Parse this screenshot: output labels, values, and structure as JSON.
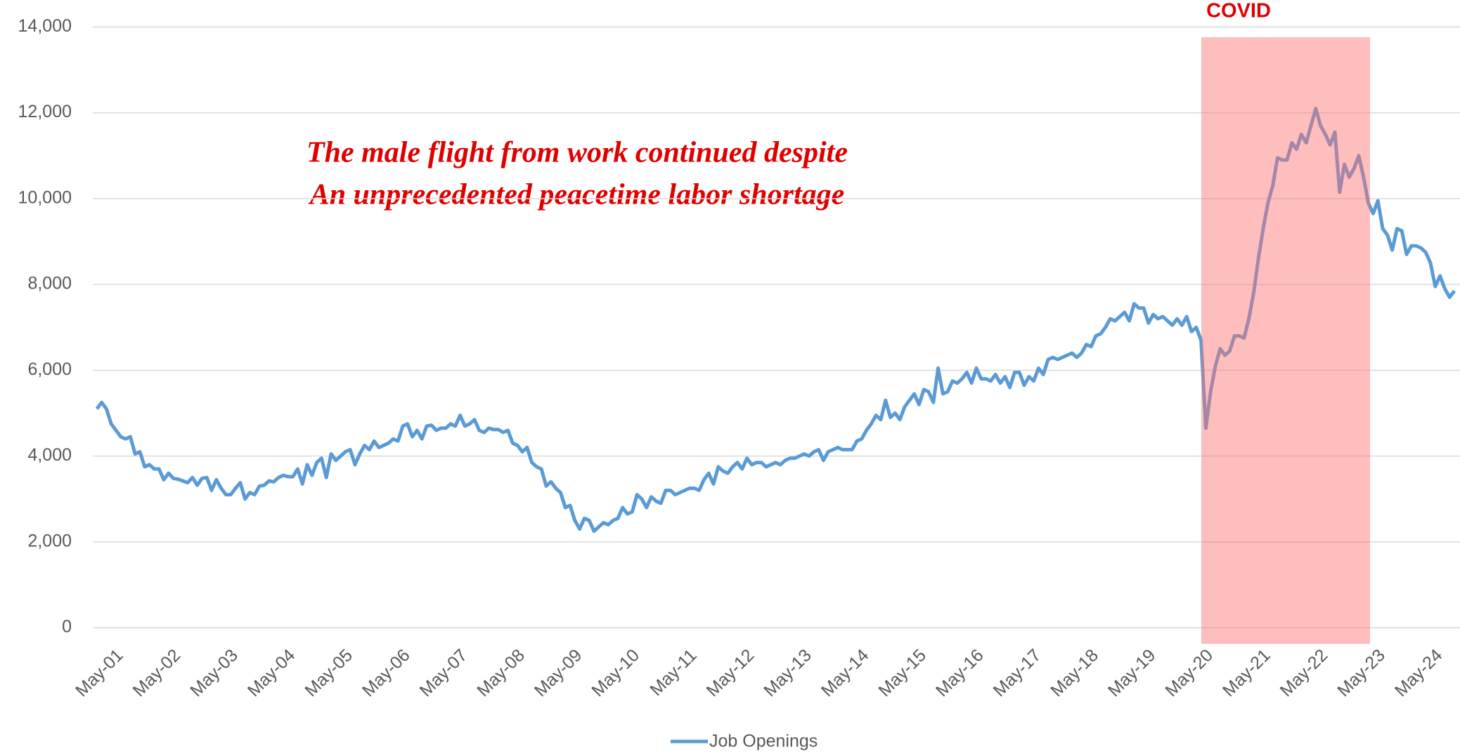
{
  "chart_data": {
    "type": "line",
    "annotations": [
      "COVID",
      "The male flight from work continued despite",
      "An unprecedented peacetime labor shortage"
    ],
    "categories": [
      null,
      null,
      null,
      null,
      null,
      "May-01",
      null,
      null,
      null,
      null,
      null,
      null,
      null,
      null,
      null,
      null,
      null,
      "May-02",
      null,
      null,
      null,
      null,
      null,
      null,
      null,
      null,
      null,
      null,
      null,
      "May-03",
      null,
      null,
      null,
      null,
      null,
      null,
      null,
      null,
      null,
      null,
      null,
      "May-04",
      null,
      null,
      null,
      null,
      null,
      null,
      null,
      null,
      null,
      null,
      null,
      "May-05",
      null,
      null,
      null,
      null,
      null,
      null,
      null,
      null,
      null,
      null,
      null,
      "May-06",
      null,
      null,
      null,
      null,
      null,
      null,
      null,
      null,
      null,
      null,
      null,
      "May-07",
      null,
      null,
      null,
      null,
      null,
      null,
      null,
      null,
      null,
      null,
      null,
      "May-08",
      null,
      null,
      null,
      null,
      null,
      null,
      null,
      null,
      null,
      null,
      null,
      "May-09",
      null,
      null,
      null,
      null,
      null,
      null,
      null,
      null,
      null,
      null,
      null,
      "May-10",
      null,
      null,
      null,
      null,
      null,
      null,
      null,
      null,
      null,
      null,
      null,
      "May-11",
      null,
      null,
      null,
      null,
      null,
      null,
      null,
      null,
      null,
      null,
      null,
      "May-12",
      null,
      null,
      null,
      null,
      null,
      null,
      null,
      null,
      null,
      null,
      null,
      "May-13",
      null,
      null,
      null,
      null,
      null,
      null,
      null,
      null,
      null,
      null,
      null,
      "May-14",
      null,
      null,
      null,
      null,
      null,
      null,
      null,
      null,
      null,
      null,
      null,
      "May-15",
      null,
      null,
      null,
      null,
      null,
      null,
      null,
      null,
      null,
      null,
      null,
      "May-16",
      null,
      null,
      null,
      null,
      null,
      null,
      null,
      null,
      null,
      null,
      null,
      "May-17",
      null,
      null,
      null,
      null,
      null,
      null,
      null,
      null,
      null,
      null,
      null,
      "May-18",
      null,
      null,
      null,
      null,
      null,
      null,
      null,
      null,
      null,
      null,
      null,
      "May-19",
      null,
      null,
      null,
      null,
      null,
      null,
      null,
      null,
      null,
      null,
      null,
      "May-20",
      null,
      null,
      null,
      null,
      null,
      null,
      null,
      null,
      null,
      null,
      null,
      "May-21",
      null,
      null,
      null,
      null,
      null,
      null,
      null,
      null,
      null,
      null,
      null,
      "May-22",
      null,
      null,
      null,
      null,
      null,
      null,
      null,
      null,
      null,
      null,
      null,
      "May-23",
      null,
      null,
      null,
      null,
      null,
      null,
      null,
      null,
      null,
      null,
      null,
      "May-24",
      null,
      null,
      null
    ],
    "series": [
      {
        "name": "Job Openings",
        "color": "#5b9bd5",
        "values": [
          5100,
          5250,
          5100,
          4750,
          4600,
          4450,
          4400,
          4450,
          4050,
          4100,
          3750,
          3800,
          3700,
          3700,
          3450,
          3600,
          3480,
          3460,
          3420,
          3380,
          3500,
          3320,
          3480,
          3500,
          3200,
          3450,
          3250,
          3100,
          3100,
          3250,
          3380,
          3000,
          3150,
          3100,
          3300,
          3320,
          3420,
          3400,
          3500,
          3550,
          3520,
          3520,
          3700,
          3350,
          3800,
          3550,
          3850,
          3950,
          3500,
          4050,
          3900,
          4000,
          4100,
          4150,
          3800,
          4050,
          4250,
          4150,
          4350,
          4200,
          4250,
          4300,
          4400,
          4350,
          4700,
          4750,
          4450,
          4600,
          4400,
          4700,
          4720,
          4600,
          4650,
          4650,
          4750,
          4700,
          4950,
          4700,
          4750,
          4850,
          4600,
          4550,
          4650,
          4620,
          4620,
          4550,
          4600,
          4300,
          4250,
          4100,
          4200,
          3850,
          3750,
          3700,
          3300,
          3400,
          3250,
          3150,
          2800,
          2850,
          2500,
          2300,
          2550,
          2500,
          2250,
          2350,
          2450,
          2400,
          2500,
          2550,
          2800,
          2650,
          2700,
          3100,
          3000,
          2800,
          3050,
          2950,
          2900,
          3200,
          3200,
          3100,
          3150,
          3200,
          3250,
          3250,
          3200,
          3450,
          3600,
          3350,
          3750,
          3650,
          3600,
          3750,
          3850,
          3700,
          3950,
          3800,
          3850,
          3850,
          3750,
          3800,
          3850,
          3800,
          3900,
          3950,
          3950,
          4000,
          4050,
          4000,
          4100,
          4150,
          3900,
          4100,
          4150,
          4200,
          4150,
          4150,
          4150,
          4350,
          4400,
          4600,
          4750,
          4950,
          4850,
          5300,
          4900,
          5000,
          4850,
          5150,
          5300,
          5450,
          5200,
          5550,
          5500,
          5250,
          6050,
          5450,
          5500,
          5750,
          5700,
          5800,
          5950,
          5700,
          6050,
          5800,
          5800,
          5750,
          5900,
          5700,
          5850,
          5600,
          5950,
          5950,
          5650,
          5850,
          5750,
          6050,
          5900,
          6250,
          6300,
          6250,
          6300,
          6350,
          6400,
          6300,
          6400,
          6600,
          6550,
          6800,
          6850,
          7000,
          7200,
          7150,
          7250,
          7350,
          7150,
          7550,
          7450,
          7450,
          7100,
          7300,
          7200,
          7250,
          7150,
          7050,
          7200,
          7050,
          7250,
          6900,
          7000,
          6700,
          4650,
          5500,
          6100,
          6500,
          6350,
          6450,
          6800,
          6800,
          6750,
          7200,
          7800,
          8600,
          9300,
          9900,
          10300,
          10950,
          10900,
          10900,
          11300,
          11150,
          11500,
          11300,
          11700,
          12100,
          11700,
          11500,
          11250,
          11550,
          10150,
          10800,
          10500,
          10700,
          11000,
          10500,
          9900,
          9650,
          9950,
          9300,
          9150,
          8800,
          9300,
          9250,
          8700,
          8900,
          8900,
          8850,
          8750,
          8500,
          7950,
          8200,
          7900,
          7700,
          7850
        ]
      }
    ],
    "ylim": [
      0,
      14000
    ],
    "yticks": [
      0,
      {
        "value": 2000,
        "label": "2,000"
      },
      {
        "value": 4000,
        "label": "4,000"
      },
      {
        "value": 6000,
        "label": "6,000"
      },
      {
        "value": 8000,
        "label": "8,000"
      },
      {
        "value": 10000,
        "label": "10,000"
      },
      {
        "value": 12000,
        "label": "12,000"
      },
      {
        "value": 14000,
        "label": "14,000"
      }
    ],
    "grid": true,
    "legend": "bottom"
  }
}
